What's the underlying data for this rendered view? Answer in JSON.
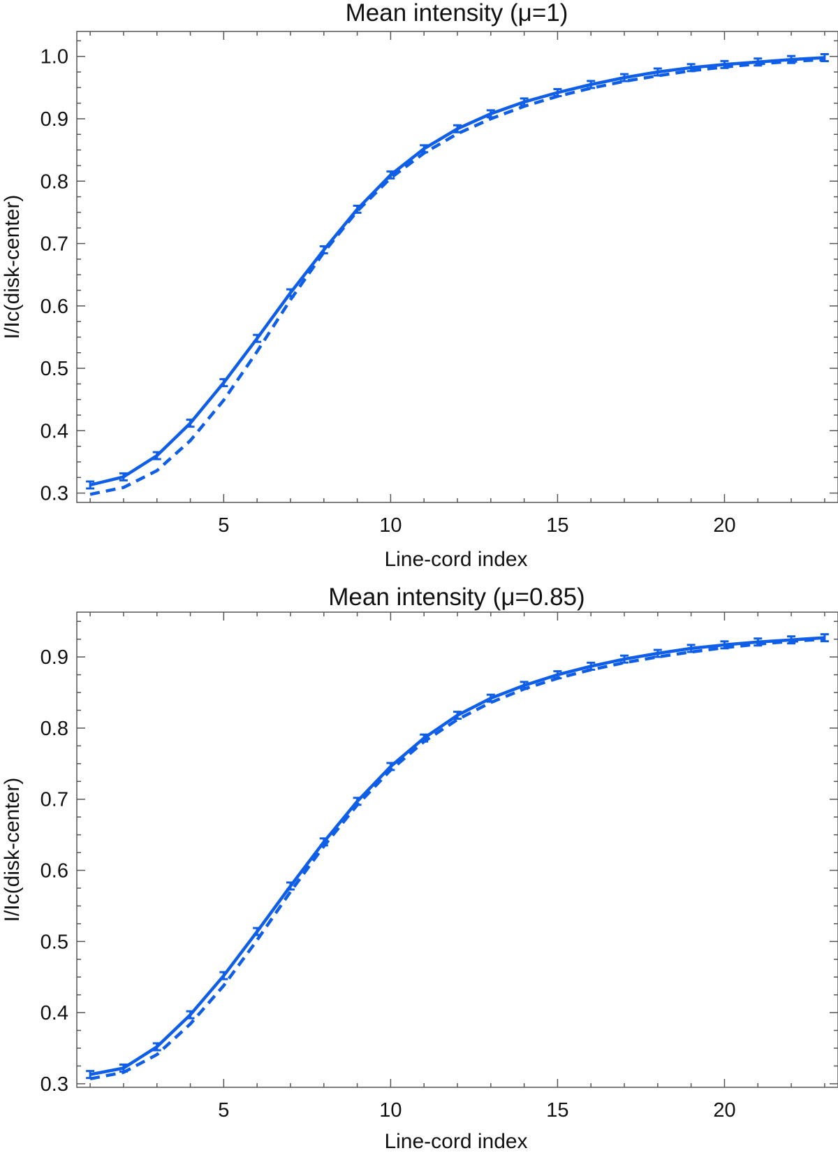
{
  "chart_data": [
    {
      "type": "line",
      "title": "Mean intensity (μ=1)",
      "xlabel": "Line-cord index",
      "ylabel": "I/Ic(disk-center)",
      "xlim": [
        0.6,
        23.4
      ],
      "ylim": [
        0.285,
        1.04
      ],
      "x_ticks": [
        5,
        10,
        15,
        20
      ],
      "y_ticks": [
        0.3,
        0.4,
        0.5,
        0.6,
        0.7,
        0.8,
        0.9,
        1.0
      ],
      "y_tick_labels": [
        "0.3",
        "0.4",
        "0.5",
        "0.6",
        "0.7",
        "0.8",
        "0.9",
        "1.0"
      ],
      "grid": false,
      "legend": "none",
      "color": "#0f5ee8",
      "x": [
        1,
        2,
        3,
        4,
        5,
        6,
        7,
        8,
        9,
        10,
        11,
        12,
        13,
        14,
        15,
        16,
        17,
        18,
        19,
        20,
        21,
        22,
        23
      ],
      "series": [
        {
          "style": "solid",
          "error_bars": true,
          "values": [
            0.313,
            0.326,
            0.36,
            0.412,
            0.477,
            0.548,
            0.621,
            0.69,
            0.755,
            0.81,
            0.852,
            0.884,
            0.908,
            0.927,
            0.942,
            0.955,
            0.966,
            0.975,
            0.982,
            0.987,
            0.991,
            0.995,
            0.998
          ]
        },
        {
          "style": "dashed",
          "error_bars": false,
          "values": [
            0.298,
            0.309,
            0.336,
            0.384,
            0.449,
            0.527,
            0.61,
            0.686,
            0.752,
            0.805,
            0.845,
            0.876,
            0.9,
            0.92,
            0.936,
            0.949,
            0.96,
            0.969,
            0.977,
            0.983,
            0.988,
            0.992,
            0.995
          ]
        }
      ]
    },
    {
      "type": "line",
      "title": "Mean intensity (μ=0.85)",
      "xlabel": "Line-cord index",
      "ylabel": "I/Ic(disk-center)",
      "xlim": [
        0.6,
        23.4
      ],
      "ylim": [
        0.295,
        0.963
      ],
      "x_ticks": [
        5,
        10,
        15,
        20
      ],
      "y_ticks": [
        0.3,
        0.4,
        0.5,
        0.6,
        0.7,
        0.8,
        0.9
      ],
      "y_tick_labels": [
        "0.3",
        "0.4",
        "0.5",
        "0.6",
        "0.7",
        "0.8",
        "0.9"
      ],
      "grid": false,
      "legend": "none",
      "color": "#0f5ee8",
      "x": [
        1,
        2,
        3,
        4,
        5,
        6,
        7,
        8,
        9,
        10,
        11,
        12,
        13,
        14,
        15,
        16,
        17,
        18,
        19,
        20,
        21,
        22,
        23
      ],
      "series": [
        {
          "style": "solid",
          "error_bars": true,
          "values": [
            0.313,
            0.322,
            0.352,
            0.397,
            0.452,
            0.514,
            0.578,
            0.64,
            0.697,
            0.746,
            0.786,
            0.818,
            0.842,
            0.86,
            0.875,
            0.887,
            0.897,
            0.905,
            0.912,
            0.917,
            0.921,
            0.924,
            0.927
          ]
        },
        {
          "style": "dashed",
          "error_bars": false,
          "values": [
            0.307,
            0.316,
            0.341,
            0.384,
            0.438,
            0.502,
            0.57,
            0.634,
            0.692,
            0.741,
            0.781,
            0.812,
            0.836,
            0.855,
            0.87,
            0.882,
            0.892,
            0.9,
            0.907,
            0.913,
            0.918,
            0.922,
            0.925
          ]
        }
      ]
    }
  ]
}
